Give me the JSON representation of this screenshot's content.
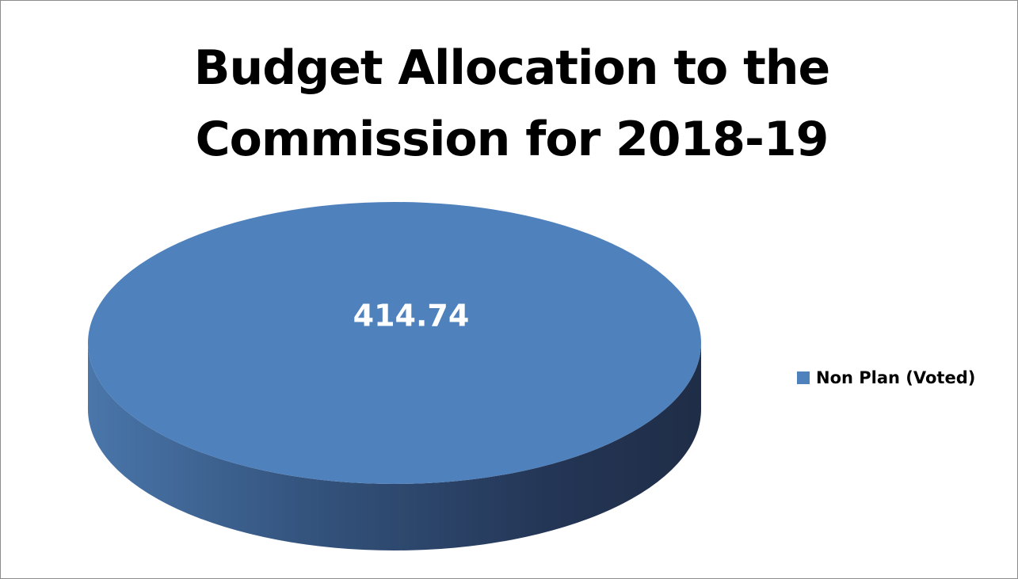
{
  "chart_data": {
    "type": "pie",
    "title": "Budget Allocation to the Commission for 2018-19",
    "title_lines": [
      "Budget Allocation to the",
      "Commission for 2018-19"
    ],
    "three_d": true,
    "categories": [
      "Non Plan (Voted)"
    ],
    "values": [
      414.74
    ],
    "data_labels": [
      "414.74"
    ],
    "colors": {
      "top": "#4f81bd",
      "side_light": "#4a76aa",
      "side_dark": "#1f2d47",
      "label": "#ffffff"
    },
    "legend": {
      "position": "right",
      "entries": [
        {
          "name": "Non Plan (Voted)",
          "color": "#4f81bd"
        }
      ]
    }
  }
}
